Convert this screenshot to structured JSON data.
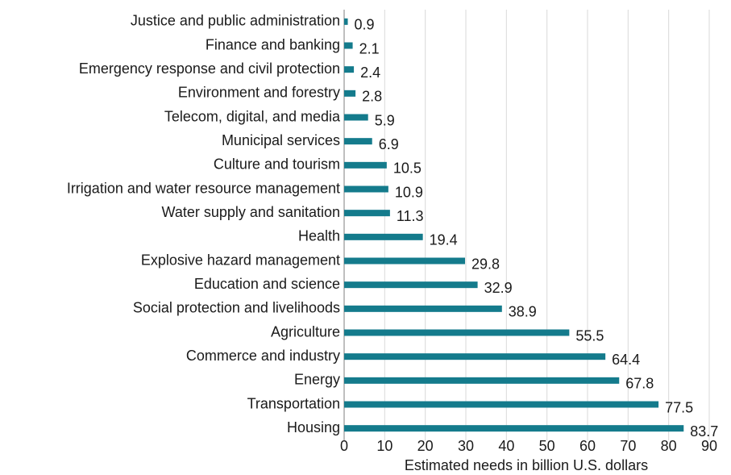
{
  "chart_data": {
    "type": "bar",
    "orientation": "horizontal",
    "xlabel": "Estimated needs in billion U.S. dollars",
    "categories": [
      "Justice and public administration",
      "Finance and banking",
      "Emergency response and civil protection",
      "Environment and forestry",
      "Telecom, digital, and media",
      "Municipal services",
      "Culture and tourism",
      "Irrigation and water resource management",
      "Water supply and sanitation",
      "Health",
      "Explosive hazard management",
      "Education and science",
      "Social protection and livelihoods",
      "Agriculture",
      "Commerce and industry",
      "Energy",
      "Transportation",
      "Housing"
    ],
    "values": [
      0.9,
      2.1,
      2.4,
      2.8,
      5.9,
      6.9,
      10.5,
      10.9,
      11.3,
      19.4,
      29.8,
      32.9,
      38.9,
      55.5,
      64.4,
      67.8,
      77.5,
      83.7
    ],
    "color": "#147b8c",
    "xlim": [
      0,
      90
    ],
    "xticks": [
      0,
      10,
      20,
      30,
      40,
      50,
      60,
      70,
      80,
      90
    ],
    "grid": true
  }
}
